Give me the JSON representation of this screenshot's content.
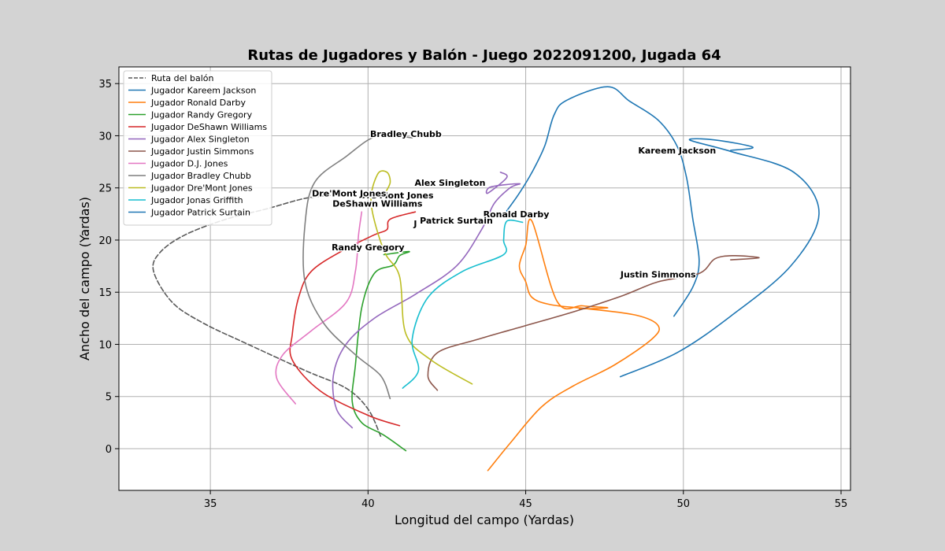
{
  "chart_data": {
    "type": "line",
    "title": "Rutas de Jugadores y Balón - Juego 2022091200, Jugada 64",
    "xlabel": "Longitud del campo (Yardas)",
    "ylabel": "Ancho del campo (Yardas)",
    "xlim": [
      32.1,
      55.3
    ],
    "ylim": [
      -4.0,
      36.6
    ],
    "xticks": [
      35,
      40,
      45,
      50,
      55
    ],
    "yticks": [
      0,
      5,
      10,
      15,
      20,
      25,
      30,
      35
    ],
    "grid": true,
    "legend_position": "upper-left",
    "series": [
      {
        "name": "Ruta del balón",
        "color": "#595959",
        "dashed": true,
        "x": [
          40.4,
          40.0,
          39.3,
          38.0,
          36.2,
          34.8,
          33.8,
          33.2,
          33.4,
          34.2,
          35.5,
          36.8,
          38.0,
          38.9
        ],
        "y": [
          1.2,
          3.8,
          5.8,
          7.5,
          10.0,
          12.0,
          14.0,
          17.0,
          18.8,
          20.5,
          22.0,
          23.0,
          24.0,
          24.3
        ]
      },
      {
        "name": "Jugador Kareem Jackson",
        "color": "#1f77b4",
        "x": [
          49.7,
          50.3,
          50.5,
          50.3,
          50.1,
          49.8,
          49.2,
          48.3,
          47.6,
          46.3,
          45.9,
          45.6,
          45.2,
          44.8,
          44.4
        ],
        "y": [
          12.7,
          15.5,
          18.0,
          22.0,
          26.0,
          29.0,
          31.5,
          33.3,
          34.7,
          33.4,
          32.0,
          29.0,
          26.5,
          24.5,
          22.8
        ]
      },
      {
        "name": "Jugador Ronald Darby",
        "color": "#ff7f0e",
        "x": [
          43.8,
          44.5,
          45.5,
          46.5,
          47.8,
          49.0,
          49.2,
          48.5,
          47.0,
          45.8,
          45.2,
          45.0,
          44.8,
          45.0,
          45.2,
          46.0,
          46.8,
          47.6,
          46.7
        ],
        "y": [
          -2.1,
          0.5,
          4.0,
          6.0,
          8.0,
          10.5,
          11.8,
          12.8,
          13.4,
          13.8,
          14.5,
          16.0,
          17.5,
          19.5,
          21.8,
          14.1,
          13.7,
          13.5,
          13.4
        ]
      },
      {
        "name": "Jugador Randy Gregory",
        "color": "#2ca02c",
        "x": [
          41.2,
          40.5,
          39.8,
          39.5,
          39.6,
          39.8,
          40.2,
          40.8,
          41.0,
          41.3,
          40.5
        ],
        "y": [
          -0.2,
          1.3,
          2.5,
          4.5,
          8.0,
          13.5,
          16.8,
          17.6,
          18.5,
          18.9,
          18.6
        ]
      },
      {
        "name": "Jugador DeShawn Williams",
        "color": "#d62728",
        "x": [
          41.0,
          40.0,
          38.5,
          37.6,
          37.6,
          37.8,
          38.2,
          39.2,
          40.2,
          40.6,
          40.7,
          41.5
        ],
        "y": [
          2.2,
          3.2,
          5.5,
          8.5,
          11.0,
          14.5,
          17.0,
          19.0,
          20.5,
          21.0,
          22.0,
          22.7
        ]
      },
      {
        "name": "Jugador Alex Singleton",
        "color": "#9467bd",
        "x": [
          39.5,
          39.0,
          38.9,
          39.3,
          40.2,
          41.5,
          42.8,
          43.6,
          44.0,
          44.5,
          44.8,
          43.9,
          43.8,
          44.4,
          44.2
        ],
        "y": [
          2.0,
          3.8,
          7.0,
          10.0,
          12.5,
          14.8,
          17.5,
          21.0,
          23.5,
          25.0,
          25.4,
          25.1,
          24.5,
          26.0,
          26.5
        ]
      },
      {
        "name": "Jugador Justin Simmons",
        "color": "#8c564b",
        "x": [
          42.2,
          41.9,
          42.2,
          43.5,
          45.0,
          46.6,
          48.1,
          49.2,
          50.5,
          51.0,
          51.6,
          52.4,
          51.5
        ],
        "y": [
          5.6,
          7.0,
          9.2,
          10.5,
          11.8,
          13.2,
          14.7,
          16.0,
          16.8,
          18.2,
          18.5,
          18.3,
          18.1
        ]
      },
      {
        "name": "Jugador D.J. Jones",
        "color": "#e377c2",
        "x": [
          37.7,
          37.1,
          37.3,
          38.2,
          39.3,
          39.6,
          39.7,
          39.8
        ],
        "y": [
          4.3,
          6.8,
          9.0,
          11.3,
          14.0,
          17.0,
          20.5,
          22.7
        ]
      },
      {
        "name": "Jugador Bradley Chubb",
        "color": "#7f7f7f",
        "x": [
          40.7,
          40.4,
          39.6,
          38.6,
          38.0,
          38.0,
          38.3,
          39.3,
          40.3,
          41.4
        ],
        "y": [
          4.8,
          7.0,
          9.0,
          12.0,
          16.0,
          21.5,
          25.5,
          28.0,
          30.0,
          29.8
        ]
      },
      {
        "name": "Jugador Dre'Mont Jones",
        "color": "#bcbd22",
        "x": [
          43.3,
          42.0,
          41.2,
          41.0,
          40.5,
          40.1,
          40.3,
          40.6,
          40.7,
          40.5
        ],
        "y": [
          6.2,
          8.5,
          11.0,
          16.5,
          19.0,
          23.5,
          26.3,
          26.5,
          25.5,
          24.3
        ]
      },
      {
        "name": "Jugador Jonas Griffith",
        "color": "#17becf",
        "x": [
          41.1,
          41.6,
          41.4,
          41.9,
          43.0,
          44.3,
          44.3,
          44.4,
          44.9
        ],
        "y": [
          5.8,
          7.5,
          10.5,
          14.5,
          17.0,
          18.6,
          20.0,
          21.8,
          21.7
        ]
      },
      {
        "name": "Jugador Patrick Surtain",
        "color": "#1f77b4",
        "x": [
          48.0,
          49.8,
          51.5,
          53.4,
          54.3,
          53.5,
          51.5,
          50.2,
          51.0,
          52.2,
          51.5
        ],
        "y": [
          6.9,
          9.2,
          12.7,
          17.5,
          22.5,
          26.5,
          28.5,
          29.6,
          29.6,
          28.9,
          28.6
        ]
      }
    ],
    "annotations": [
      {
        "text": "Bradley Chubb",
        "x": 41.2,
        "y": 30.2
      },
      {
        "text": "Kareem Jackson",
        "x": 49.8,
        "y": 28.6
      },
      {
        "text": "Alex Singleton",
        "x": 42.6,
        "y": 25.5
      },
      {
        "text": "Dre'Mont Jones",
        "x": 40.9,
        "y": 24.3
      },
      {
        "text": "Dre'Mont Jones",
        "x": 39.4,
        "y": 24.5
      },
      {
        "text": "DeShawn Williams",
        "x": 40.3,
        "y": 23.5
      },
      {
        "text": "Ronald Darby",
        "x": 44.7,
        "y": 22.5
      },
      {
        "text": "J",
        "x": 41.5,
        "y": 21.6
      },
      {
        "text": "Patrick Surtain",
        "x": 42.8,
        "y": 21.9
      },
      {
        "text": "Randy Gregory",
        "x": 40.0,
        "y": 19.3
      },
      {
        "text": "Justin Simmons",
        "x": 49.2,
        "y": 16.7
      }
    ]
  }
}
